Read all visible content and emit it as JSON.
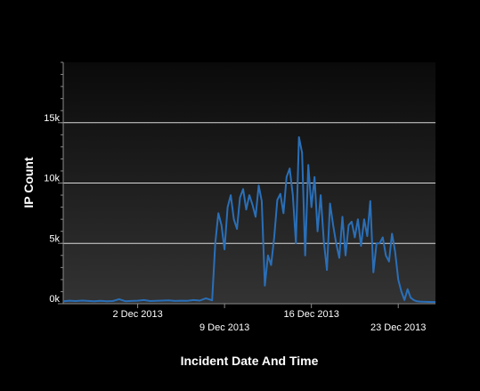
{
  "chart_data": {
    "type": "area",
    "xlabel": "Incident Date And Time",
    "ylabel": "IP Count",
    "xlim": [
      "2013-11-26T00:00",
      "2013-12-26T00:00"
    ],
    "ylim": [
      0,
      20000
    ],
    "y_ticks": [
      {
        "value": 0,
        "label": "0k"
      },
      {
        "value": 5000,
        "label": "5k"
      },
      {
        "value": 10000,
        "label": "10k"
      },
      {
        "value": 15000,
        "label": "15k"
      }
    ],
    "x_ticks": [
      {
        "value": "2013-12-02",
        "label": "2 Dec 2013",
        "row": 1
      },
      {
        "value": "2013-12-09",
        "label": "9 Dec 2013",
        "row": 2
      },
      {
        "value": "2013-12-16",
        "label": "16 Dec 2013",
        "row": 1
      },
      {
        "value": "2013-12-23",
        "label": "23 Dec 2013",
        "row": 2
      }
    ],
    "grid": true,
    "background_gradient": [
      "#0a0a0a",
      "#333333"
    ],
    "line_color": "#2a6fb8",
    "series": [
      {
        "x": [
          "2013-11-26T00:00",
          "2013-11-26T12:00",
          "2013-11-27T00:00",
          "2013-11-27T12:00",
          "2013-11-28T00:00",
          "2013-11-28T12:00",
          "2013-11-29T00:00",
          "2013-11-29T12:00",
          "2013-11-30T00:00",
          "2013-11-30T12:00",
          "2013-12-01T00:00",
          "2013-12-01T12:00",
          "2013-12-02T00:00",
          "2013-12-02T12:00",
          "2013-12-03T00:00",
          "2013-12-03T12:00",
          "2013-12-04T00:00",
          "2013-12-04T12:00",
          "2013-12-05T00:00",
          "2013-12-05T12:00",
          "2013-12-06T00:00",
          "2013-12-06T12:00",
          "2013-12-07T00:00",
          "2013-12-07T12:00",
          "2013-12-08T00:00",
          "2013-12-08T06:00",
          "2013-12-08T12:00",
          "2013-12-08T18:00",
          "2013-12-09T00:00",
          "2013-12-09T06:00",
          "2013-12-09T12:00",
          "2013-12-09T18:00",
          "2013-12-10T00:00",
          "2013-12-10T06:00",
          "2013-12-10T12:00",
          "2013-12-10T18:00",
          "2013-12-11T00:00",
          "2013-12-11T06:00",
          "2013-12-11T12:00",
          "2013-12-11T18:00",
          "2013-12-12T00:00",
          "2013-12-12T06:00",
          "2013-12-12T12:00",
          "2013-12-12T18:00",
          "2013-12-13T00:00",
          "2013-12-13T06:00",
          "2013-12-13T12:00",
          "2013-12-13T18:00",
          "2013-12-14T00:00",
          "2013-12-14T06:00",
          "2013-12-14T12:00",
          "2013-12-14T18:00",
          "2013-12-15T00:00",
          "2013-12-15T06:00",
          "2013-12-15T12:00",
          "2013-12-15T18:00",
          "2013-12-16T00:00",
          "2013-12-16T06:00",
          "2013-12-16T12:00",
          "2013-12-16T18:00",
          "2013-12-17T00:00",
          "2013-12-17T06:00",
          "2013-12-17T12:00",
          "2013-12-17T18:00",
          "2013-12-18T00:00",
          "2013-12-18T06:00",
          "2013-12-18T12:00",
          "2013-12-18T18:00",
          "2013-12-19T00:00",
          "2013-12-19T06:00",
          "2013-12-19T12:00",
          "2013-12-19T18:00",
          "2013-12-20T00:00",
          "2013-12-20T06:00",
          "2013-12-20T12:00",
          "2013-12-20T18:00",
          "2013-12-21T00:00",
          "2013-12-21T06:00",
          "2013-12-21T12:00",
          "2013-12-21T18:00",
          "2013-12-22T00:00",
          "2013-12-22T06:00",
          "2013-12-22T12:00",
          "2013-12-22T18:00",
          "2013-12-23T00:00",
          "2013-12-23T06:00",
          "2013-12-23T12:00",
          "2013-12-23T18:00",
          "2013-12-24T00:00",
          "2013-12-24T06:00",
          "2013-12-24T12:00",
          "2013-12-24T18:00",
          "2013-12-25T00:00",
          "2013-12-25T12:00",
          "2013-12-26T00:00"
        ],
        "y": [
          200,
          250,
          220,
          260,
          230,
          210,
          240,
          200,
          220,
          380,
          210,
          230,
          250,
          300,
          220,
          240,
          260,
          280,
          230,
          250,
          240,
          300,
          260,
          450,
          280,
          5000,
          7500,
          6500,
          4500,
          8000,
          9000,
          7000,
          6200,
          8800,
          9500,
          7800,
          9000,
          8200,
          7200,
          9800,
          8500,
          1500,
          4000,
          3200,
          5500,
          8600,
          9100,
          7500,
          10500,
          11200,
          9000,
          5000,
          13800,
          12500,
          4000,
          11500,
          8000,
          10500,
          6000,
          9000,
          5200,
          2800,
          8300,
          6500,
          5000,
          3800,
          7200,
          4000,
          6500,
          6800,
          5500,
          7000,
          4800,
          7000,
          5600,
          8500,
          2600,
          5000,
          5000,
          5500,
          4000,
          3500,
          5800,
          4300,
          2000,
          1000,
          300,
          1200,
          500,
          300,
          200,
          180,
          160,
          150,
          140
        ]
      }
    ]
  }
}
